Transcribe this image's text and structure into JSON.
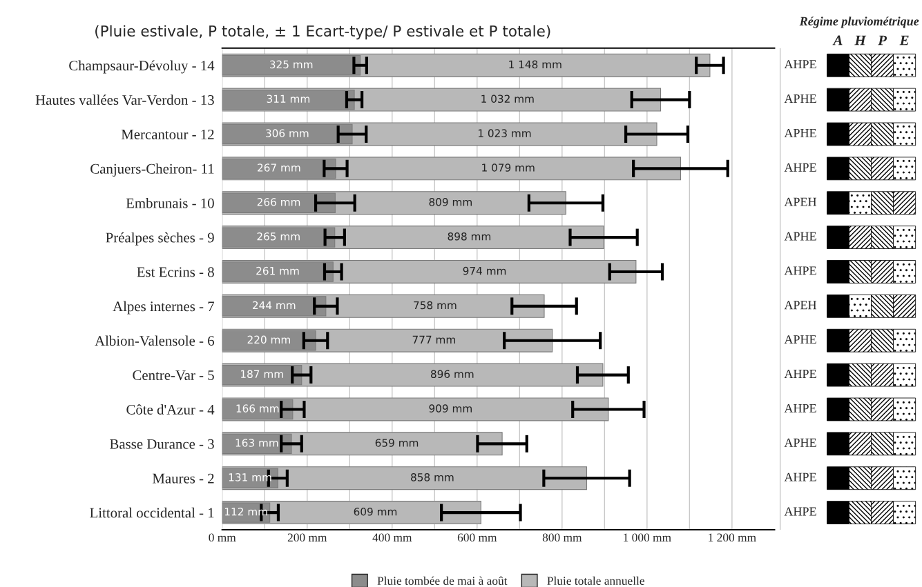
{
  "chart_data": [
    {
      "type": "bar",
      "orientation": "horizontal",
      "subtitle": "(Pluie estivale, P totale, ± 1 Ecart-type/ P estivale et P totale)",
      "categories": [
        "Champsaur-Dévoluy - 14",
        "Hautes vallées Var-Verdon - 13",
        "Mercantour - 12",
        "Canjuers-Cheiron- 11",
        "Embrunais - 10",
        "Préalpes sèches - 9",
        "Est Ecrins - 8",
        "Alpes internes - 7",
        "Albion-Valensole - 6",
        "Centre-Var - 5",
        "Côte d'Azur - 4",
        "Basse Durance - 3",
        "Maures - 2",
        "Littoral occidental - 1"
      ],
      "series": [
        {
          "name": "Pluie totale annuelle",
          "color": "#b8b8b8",
          "values": [
            1148,
            1032,
            1023,
            1079,
            809,
            898,
            974,
            758,
            777,
            896,
            909,
            659,
            858,
            609
          ],
          "errors": [
            32,
            68,
            73,
            111,
            87,
            79,
            62,
            76,
            113,
            60,
            84,
            58,
            101,
            93
          ],
          "value_labels": [
            "1 148 mm",
            "1 032 mm",
            "1 023 mm",
            "1 079 mm",
            "809 mm",
            "898 mm",
            "974 mm",
            "758 mm",
            "777 mm",
            "896 mm",
            "909 mm",
            "659 mm",
            "858 mm",
            "609 mm"
          ]
        },
        {
          "name": "Pluie tombée de mai à août",
          "color": "#8c8c8c",
          "values": [
            325,
            311,
            306,
            267,
            266,
            265,
            261,
            244,
            220,
            187,
            166,
            163,
            131,
            112
          ],
          "errors": [
            15,
            18,
            33,
            27,
            46,
            23,
            20,
            27,
            28,
            22,
            27,
            24,
            22,
            20
          ],
          "value_labels": [
            "325 mm",
            "311 mm",
            "306 mm",
            "267 mm",
            "266 mm",
            "265 mm",
            "261 mm",
            "244 mm",
            "220 mm",
            "187 mm",
            "166 mm",
            "163 mm",
            "131 mm",
            "112 mm"
          ]
        }
      ],
      "xlim": [
        0,
        1300
      ],
      "xticks": [
        {
          "value": 0,
          "label": "0 mm"
        },
        {
          "value": 100,
          "label": null
        },
        {
          "value": 200,
          "label": "200 mm"
        },
        {
          "value": 300,
          "label": null
        },
        {
          "value": 400,
          "label": "400 mm"
        },
        {
          "value": 500,
          "label": null
        },
        {
          "value": 600,
          "label": "600 mm"
        },
        {
          "value": 700,
          "label": null
        },
        {
          "value": 800,
          "label": "800 mm"
        },
        {
          "value": 900,
          "label": null
        },
        {
          "value": 1000,
          "label": "1 000 mm"
        },
        {
          "value": 1100,
          "label": null
        },
        {
          "value": 1200,
          "label": "1 200 mm"
        }
      ],
      "grid": "x",
      "legend": "bottom"
    },
    {
      "type": "other",
      "title": "Régime pluviométrique",
      "categories": [
        "A",
        "H",
        "P",
        "E"
      ],
      "annotations": [
        "AHPE",
        "APHE",
        "APHE",
        "AHPE",
        "APEH",
        "APHE",
        "AHPE",
        "APEH",
        "APHE",
        "AHPE",
        "AHPE",
        "APHE",
        "AHPE",
        "AHPE"
      ]
    }
  ]
}
